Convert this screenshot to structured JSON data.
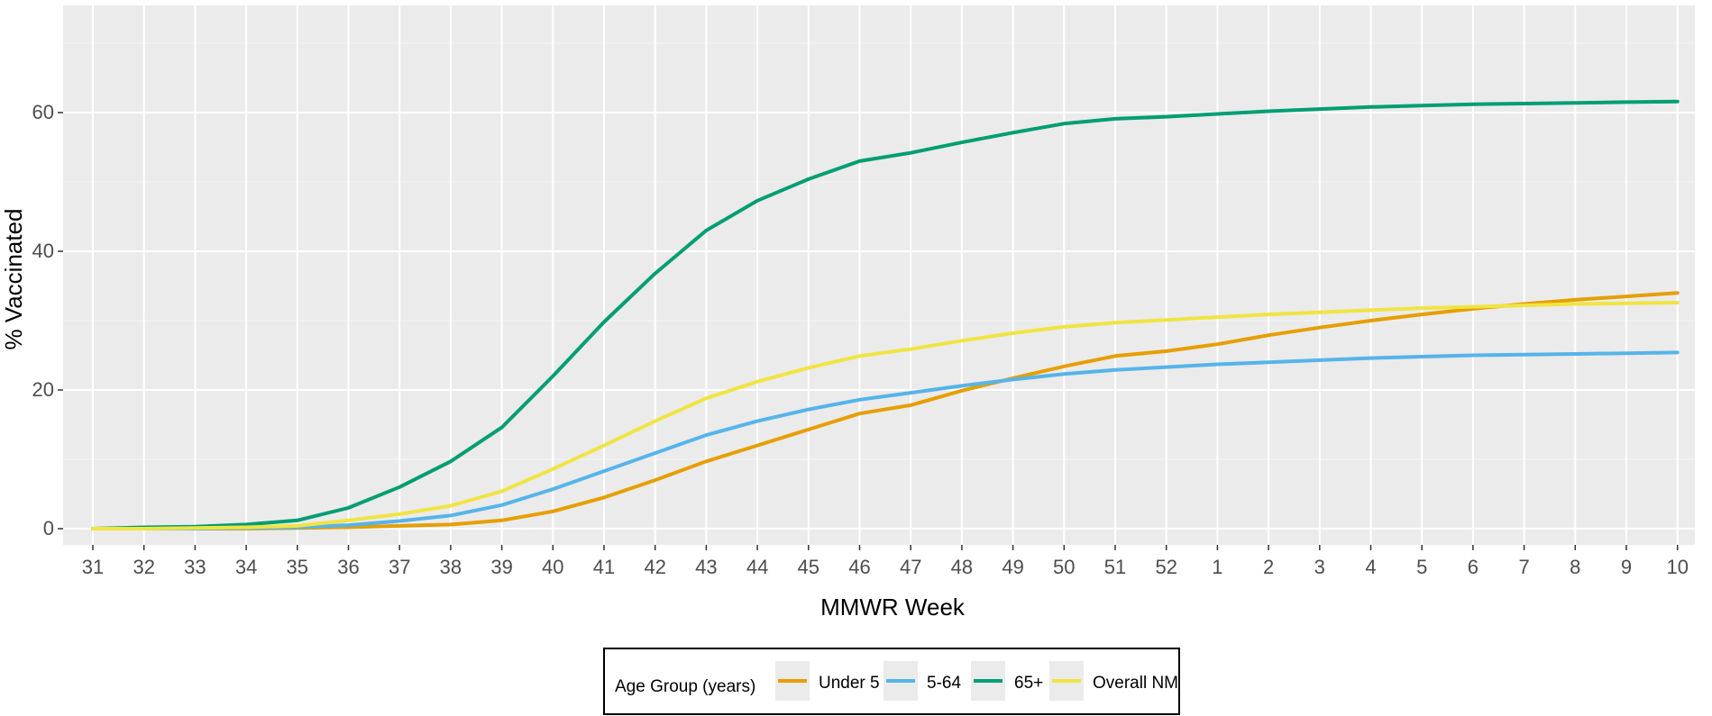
{
  "chart_data": {
    "type": "line",
    "xlabel": "MMWR Week",
    "ylabel": "% Vaccinated",
    "x": [
      "31",
      "32",
      "33",
      "34",
      "35",
      "36",
      "37",
      "38",
      "39",
      "40",
      "41",
      "42",
      "43",
      "44",
      "45",
      "46",
      "47",
      "48",
      "49",
      "50",
      "51",
      "52",
      "1",
      "2",
      "3",
      "4",
      "5",
      "6",
      "7",
      "8",
      "9",
      "10"
    ],
    "ylim": [
      -3,
      75
    ],
    "yticks": [
      0,
      20,
      40,
      60
    ],
    "grid": true,
    "legend": {
      "title": "Age Group (years)",
      "position": "bottom"
    },
    "series": [
      {
        "name": "Under 5",
        "color": "#E69F00",
        "values": [
          0,
          0,
          0,
          0,
          0.1,
          0.2,
          0.4,
          0.6,
          1.2,
          2.5,
          4.5,
          7.0,
          9.7,
          12.0,
          14.3,
          16.6,
          17.8,
          19.9,
          21.7,
          23.4,
          24.9,
          25.6,
          26.6,
          27.9,
          29.0,
          30.0,
          30.9,
          31.7,
          32.4,
          33.0,
          33.5,
          34.0
        ]
      },
      {
        "name": "5-64",
        "color": "#56B4E9",
        "values": [
          0,
          0,
          0,
          0.1,
          0.2,
          0.5,
          1.1,
          1.9,
          3.4,
          5.7,
          8.3,
          10.9,
          13.5,
          15.5,
          17.2,
          18.6,
          19.6,
          20.6,
          21.5,
          22.3,
          22.9,
          23.3,
          23.7,
          24.0,
          24.3,
          24.6,
          24.8,
          25.0,
          25.1,
          25.2,
          25.3,
          25.4
        ]
      },
      {
        "name": "65+",
        "color": "#009E73",
        "values": [
          0,
          0.2,
          0.3,
          0.6,
          1.2,
          3.0,
          6.0,
          9.7,
          14.6,
          22.0,
          29.8,
          36.8,
          43.0,
          47.3,
          50.4,
          53.0,
          54.2,
          55.7,
          57.1,
          58.4,
          59.1,
          59.4,
          59.8,
          60.2,
          60.5,
          60.8,
          61.0,
          61.2,
          61.3,
          61.4,
          61.5,
          61.6
        ]
      },
      {
        "name": "Overall NM",
        "color": "#F0E442",
        "values": [
          0,
          0,
          0.1,
          0.2,
          0.4,
          1.2,
          2.1,
          3.3,
          5.4,
          8.6,
          12.0,
          15.5,
          18.8,
          21.2,
          23.2,
          24.9,
          25.9,
          27.1,
          28.2,
          29.1,
          29.7,
          30.1,
          30.5,
          30.9,
          31.2,
          31.5,
          31.8,
          32.0,
          32.2,
          32.4,
          32.5,
          32.6
        ]
      }
    ]
  }
}
